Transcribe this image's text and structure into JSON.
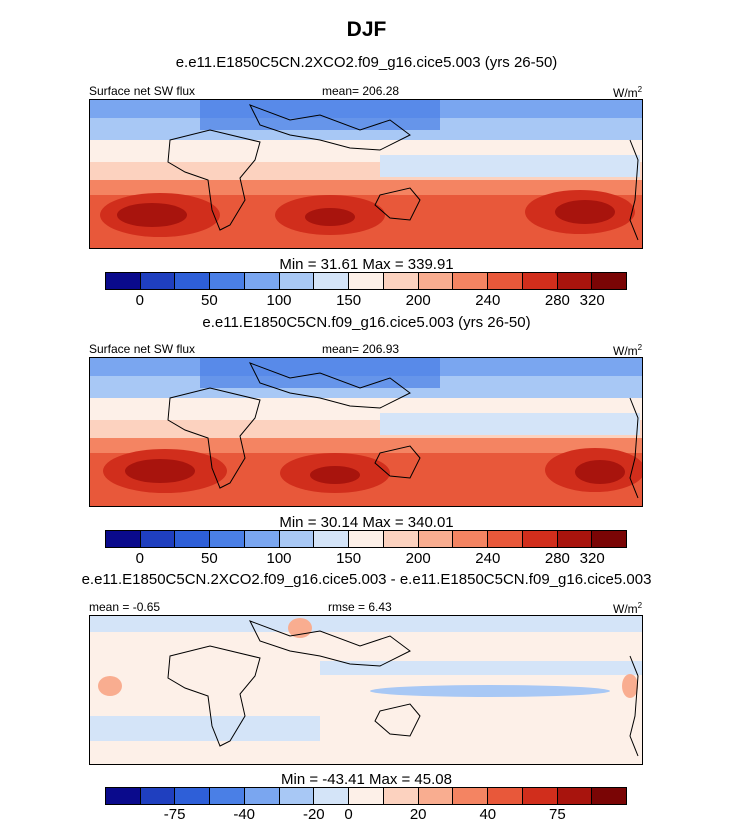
{
  "title": "DJF",
  "panel1": {
    "case": "e.e11.E1850C5CN.2XCO2.f09_g16.cice5.003 (yrs 26-50)",
    "variable": "Surface net SW flux",
    "mean": "mean= 206.28",
    "units": "W/m",
    "units_exp": "2",
    "minmax": "Min =  31.61 Max = 339.91"
  },
  "panel2": {
    "case": "e.e11.E1850C5CN.f09_g16.cice5.003 (yrs 26-50)",
    "variable": "Surface net SW flux",
    "mean": "mean= 206.93",
    "units": "W/m",
    "units_exp": "2",
    "minmax": "Min =  30.14 Max = 340.01"
  },
  "panel3": {
    "case": "e.e11.E1850C5CN.2XCO2.f09_g16.cice5.003 - e.e11.E1850C5CN.f09_g16.cice5.003",
    "mean": "mean =  -0.65",
    "rmse": "rmse =  6.43",
    "units": "W/m",
    "units_exp": "2",
    "minmax": "Min = -43.41 Max =  45.08"
  },
  "colorbar_abs": {
    "colors": [
      "#0a0a8c",
      "#1f3fbf",
      "#2e5fd8",
      "#4a7fe6",
      "#7aa6f0",
      "#a8c8f5",
      "#d4e4f8",
      "#fdf0e8",
      "#fcd2bf",
      "#f9ad90",
      "#f48462",
      "#e8583a",
      "#d12e1c",
      "#a8140d",
      "#7a0505"
    ],
    "ticks": [
      "0",
      "50",
      "100",
      "150",
      "200",
      "240",
      "280",
      "320"
    ]
  },
  "colorbar_diff": {
    "colors": [
      "#0a0a8c",
      "#1f3fbf",
      "#2e5fd8",
      "#4a7fe6",
      "#7aa6f0",
      "#a8c8f5",
      "#d4e4f8",
      "#fdf0e8",
      "#fcd2bf",
      "#f9ad90",
      "#f48462",
      "#e8583a",
      "#d12e1c",
      "#a8140d",
      "#7a0505"
    ],
    "ticks": [
      "-75",
      "-40",
      "-20",
      "0",
      "20",
      "40",
      "75"
    ]
  }
}
